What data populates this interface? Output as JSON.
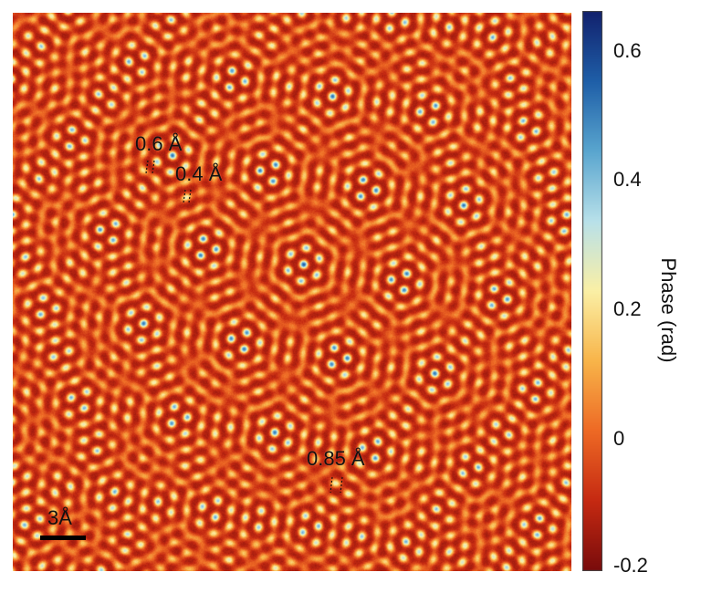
{
  "colorbar": {
    "title": "Phase (rad)",
    "ticks": [
      "0.6",
      "0.4",
      "0.2",
      "0",
      "-0.2"
    ],
    "range": [
      -0.2,
      0.65
    ],
    "colors": [
      "#7a0c0c",
      "#c62a12",
      "#ee6a25",
      "#f8b54a",
      "#fbf0a6",
      "#b9e1ea",
      "#5aa6cf",
      "#1f5fa8",
      "#12226e"
    ]
  },
  "annotations": [
    {
      "label": "0.6 Å"
    },
    {
      "label": "0.4 Å"
    },
    {
      "label": "0.85 Å"
    }
  ],
  "scalebar": {
    "label": "3Å"
  }
}
